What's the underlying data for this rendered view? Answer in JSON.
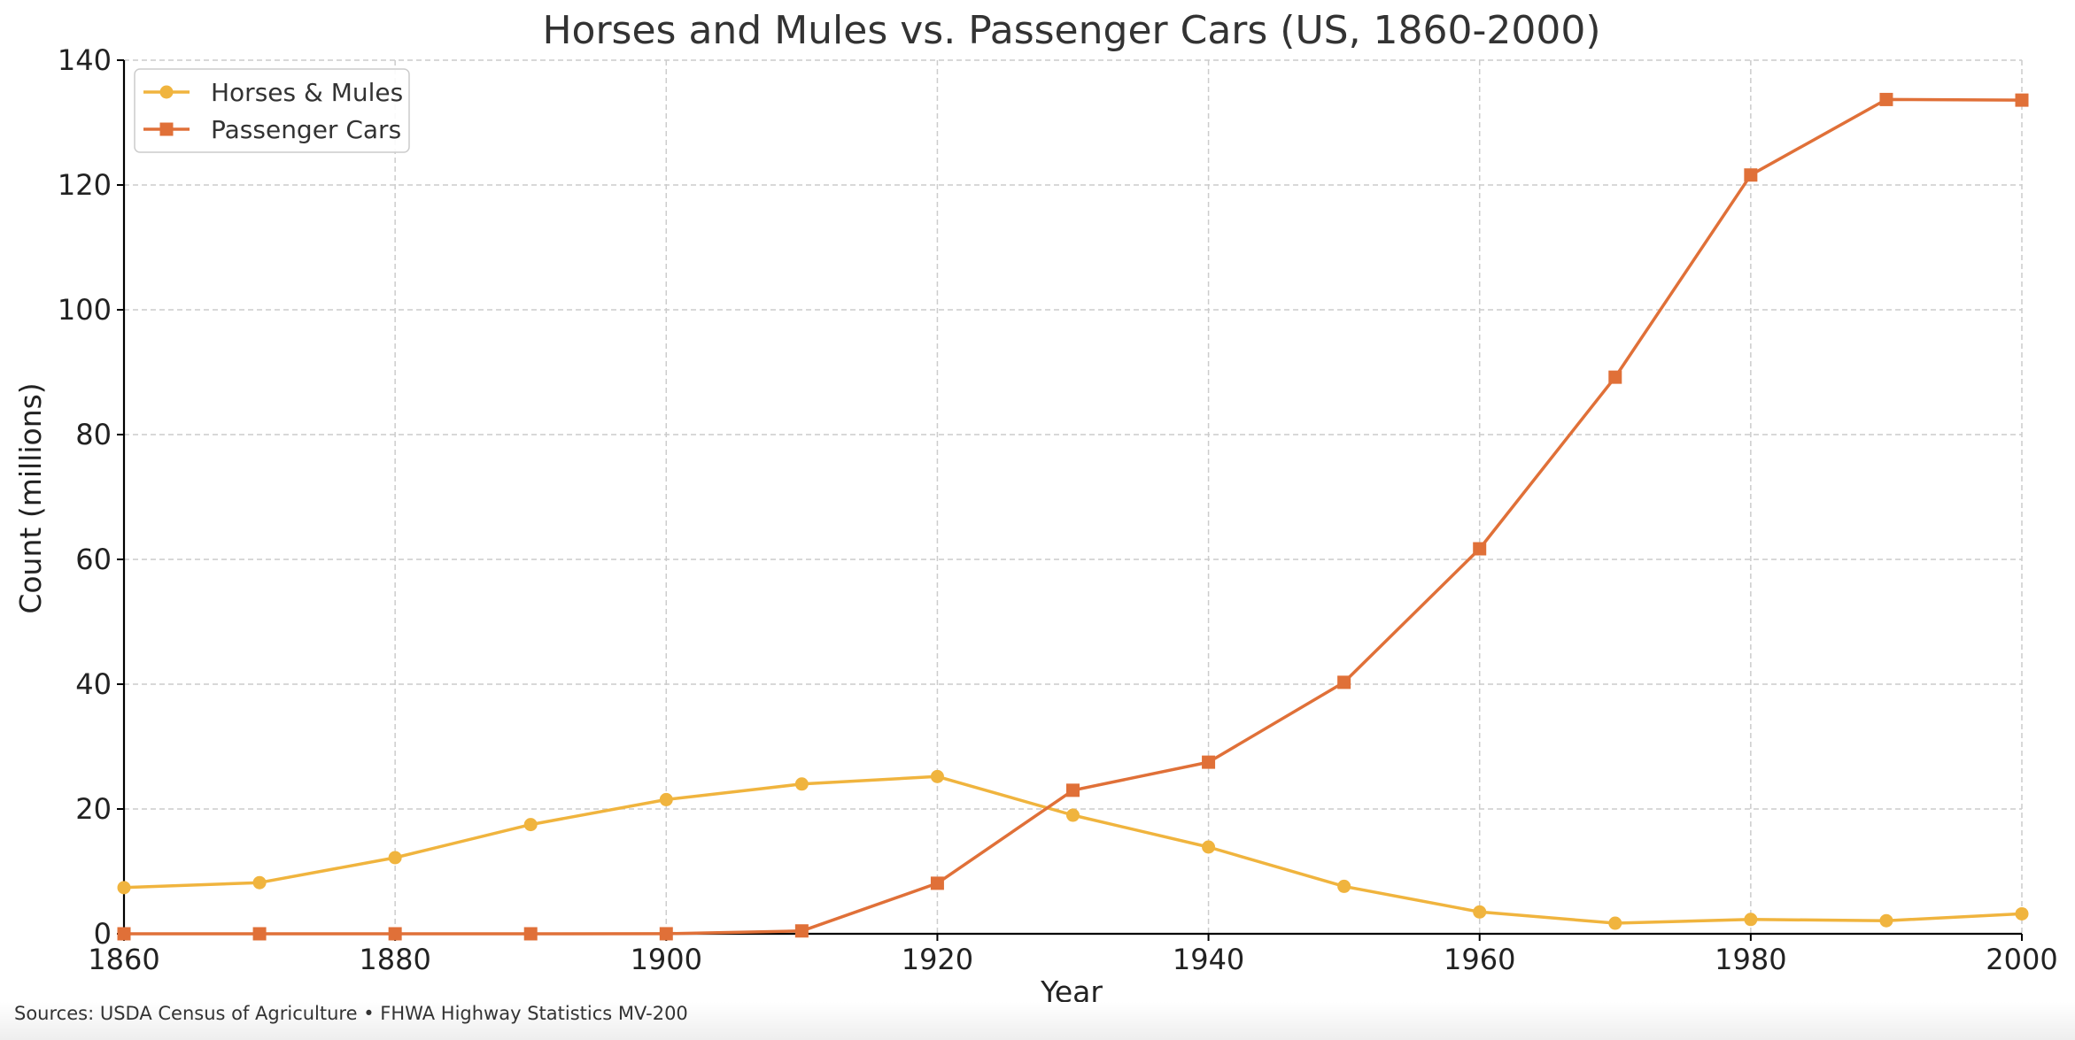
{
  "chart_data": {
    "type": "line",
    "title": "Horses and Mules vs. Passenger Cars (US, 1860-2000)",
    "xlabel": "Year",
    "ylabel": "Count (millions)",
    "xlim": [
      1860,
      2000
    ],
    "ylim": [
      0,
      140
    ],
    "xticks": [
      1860,
      1880,
      1900,
      1920,
      1940,
      1960,
      1980,
      2000
    ],
    "yticks": [
      0,
      20,
      40,
      60,
      80,
      100,
      120,
      140
    ],
    "grid": true,
    "legend_position": "top-left",
    "x": [
      1860,
      1870,
      1880,
      1890,
      1900,
      1910,
      1920,
      1930,
      1940,
      1950,
      1960,
      1970,
      1980,
      1990,
      2000
    ],
    "series": [
      {
        "name": "Horses & Mules",
        "color": "#f0b43e",
        "marker": "circle",
        "values": [
          7.4,
          8.2,
          12.2,
          17.5,
          21.5,
          24.0,
          25.2,
          19.0,
          13.9,
          7.6,
          3.5,
          1.7,
          2.3,
          2.1,
          3.2
        ]
      },
      {
        "name": "Passenger Cars",
        "color": "#e07038",
        "marker": "square",
        "values": [
          0,
          0,
          0,
          0,
          0.008,
          0.46,
          8.1,
          23.0,
          27.5,
          40.3,
          61.7,
          89.2,
          121.6,
          133.7,
          133.6
        ]
      }
    ]
  },
  "footer": {
    "sources": "Sources: USDA Census of Agriculture • FHWA Highway Statistics MV-200"
  },
  "colors": {
    "text": "#333333",
    "grid": "#cccccc",
    "axis": "#000000"
  }
}
